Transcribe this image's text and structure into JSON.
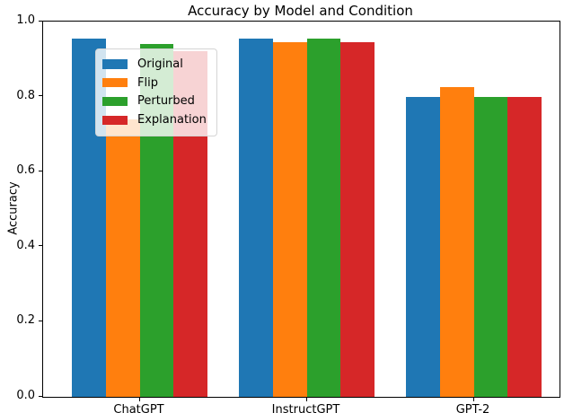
{
  "chart_data": {
    "type": "bar",
    "title": "Accuracy by Model and Condition",
    "xlabel": "",
    "ylabel": "Accuracy",
    "categories": [
      "ChatGPT",
      "InstructGPT",
      "GPT-2"
    ],
    "series": [
      {
        "name": "Original",
        "color": "#1f77b4",
        "values": [
          0.955,
          0.955,
          0.8
        ]
      },
      {
        "name": "Flip",
        "color": "#ff7f0e",
        "values": [
          0.74,
          0.945,
          0.825
        ]
      },
      {
        "name": "Perturbed",
        "color": "#2ca02c",
        "values": [
          0.94,
          0.955,
          0.8
        ]
      },
      {
        "name": "Explanation",
        "color": "#d62728",
        "values": [
          0.92,
          0.945,
          0.8
        ]
      }
    ],
    "ylim": [
      0.0,
      1.0
    ],
    "yticks": [
      "0.0",
      "0.2",
      "0.4",
      "0.6",
      "0.8",
      "1.0"
    ],
    "legend_position": "upper left",
    "grid": false,
    "background_color": "#ffffff",
    "spine_color": "#000000"
  }
}
